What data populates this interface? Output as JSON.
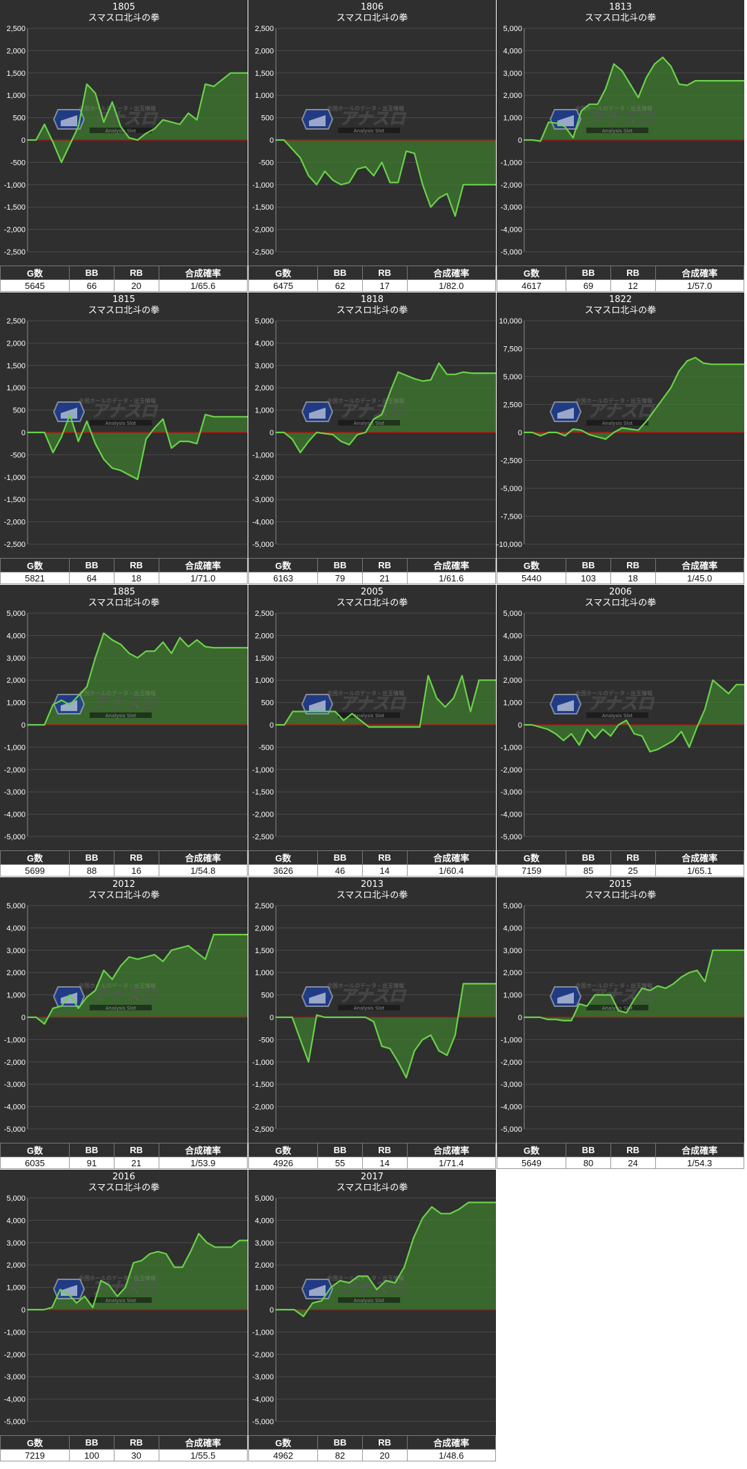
{
  "chart_data": [
    {
      "type": "area",
      "title": "1805",
      "subtitle": "スマスロ北斗の拳",
      "ylim": [
        -2500,
        2500
      ],
      "yticks": [
        "2,500",
        "2,000",
        "1,500",
        "1,000",
        "500",
        "0",
        "-500",
        "-1,000",
        "-1,500",
        "-2,000",
        "-2,500"
      ],
      "values": [
        0,
        0,
        350,
        -50,
        -500,
        -100,
        300,
        1250,
        1050,
        400,
        850,
        300,
        50,
        0,
        150,
        250,
        450,
        400,
        350,
        600,
        450,
        1250,
        1200,
        1350,
        1500,
        1500,
        1500
      ],
      "stats": {
        "headers": [
          "G数",
          "BB",
          "RB",
          "合成確率"
        ],
        "values": [
          "5645",
          "66",
          "20",
          "1/65.6"
        ]
      }
    },
    {
      "type": "area",
      "title": "1806",
      "subtitle": "スマスロ北斗の拳",
      "ylim": [
        -2500,
        2500
      ],
      "yticks": [
        "2,500",
        "2,000",
        "1,500",
        "1,000",
        "500",
        "0",
        "-500",
        "-1,000",
        "-1,500",
        "-2,000",
        "-2,500"
      ],
      "values": [
        0,
        0,
        -200,
        -400,
        -800,
        -1000,
        -700,
        -900,
        -1000,
        -950,
        -650,
        -600,
        -800,
        -500,
        -950,
        -950,
        -250,
        -300,
        -1000,
        -1500,
        -1300,
        -1200,
        -1700,
        -1000,
        -1000,
        -1000,
        -1000,
        -1000
      ],
      "stats": {
        "headers": [
          "G数",
          "BB",
          "RB",
          "合成確率"
        ],
        "values": [
          "6475",
          "62",
          "17",
          "1/82.0"
        ]
      }
    },
    {
      "type": "area",
      "title": "1813",
      "subtitle": "スマスロ北斗の拳",
      "ylim": [
        -5000,
        5000
      ],
      "yticks": [
        "5,000",
        "4,000",
        "3,000",
        "2,000",
        "1,000",
        "0",
        "-1,000",
        "-2,000",
        "-3,000",
        "-4,000",
        "-5,000"
      ],
      "values": [
        0,
        0,
        -50,
        800,
        750,
        600,
        100,
        1300,
        1600,
        1600,
        2300,
        3400,
        3100,
        2500,
        1900,
        2800,
        3400,
        3700,
        3300,
        2500,
        2450,
        2650,
        2650,
        2650,
        2650,
        2650,
        2650,
        2650
      ],
      "stats": {
        "headers": [
          "G数",
          "BB",
          "RB",
          "合成確率"
        ],
        "values": [
          "4617",
          "69",
          "12",
          "1/57.0"
        ]
      }
    },
    {
      "type": "area",
      "title": "1815",
      "subtitle": "スマスロ北斗の拳",
      "ylim": [
        -2500,
        2500
      ],
      "yticks": [
        "2,500",
        "2,000",
        "1,500",
        "1,000",
        "500",
        "0",
        "-500",
        "-1,000",
        "-1,500",
        "-2,000",
        "-2,500"
      ],
      "values": [
        0,
        0,
        0,
        -450,
        -100,
        400,
        -200,
        250,
        -250,
        -600,
        -800,
        -850,
        -950,
        -1050,
        -150,
        100,
        300,
        -350,
        -200,
        -200,
        -250,
        400,
        350,
        350,
        350,
        350,
        350
      ],
      "stats": {
        "headers": [
          "G数",
          "BB",
          "RB",
          "合成確率"
        ],
        "values": [
          "5821",
          "64",
          "18",
          "1/71.0"
        ]
      }
    },
    {
      "type": "area",
      "title": "1818",
      "subtitle": "スマスロ北斗の拳",
      "ylim": [
        -5000,
        5000
      ],
      "yticks": [
        "5,000",
        "4,000",
        "3,000",
        "2,000",
        "1,000",
        "0",
        "-1,000",
        "-2,000",
        "-3,000",
        "-4,000",
        "-5,000"
      ],
      "values": [
        0,
        0,
        -300,
        -900,
        -400,
        0,
        -50,
        -100,
        -400,
        -550,
        -100,
        0,
        600,
        800,
        1800,
        2700,
        2550,
        2400,
        2300,
        2350,
        3100,
        2600,
        2600,
        2700,
        2650,
        2650,
        2650,
        2650
      ],
      "stats": {
        "headers": [
          "G数",
          "BB",
          "RB",
          "合成確率"
        ],
        "values": [
          "6163",
          "79",
          "21",
          "1/61.6"
        ]
      }
    },
    {
      "type": "area",
      "title": "1822",
      "subtitle": "スマスロ北斗の拳",
      "ylim": [
        -10000,
        10000
      ],
      "yticks": [
        "10,000",
        "7,500",
        "5,000",
        "2,500",
        "0",
        "-2,500",
        "-5,000",
        "-7,500",
        "-10,000"
      ],
      "values": [
        0,
        0,
        -300,
        0,
        0,
        -300,
        300,
        200,
        -200,
        -400,
        -600,
        0,
        400,
        300,
        200,
        1000,
        2000,
        3000,
        4000,
        5500,
        6400,
        6700,
        6200,
        6100,
        6100,
        6100,
        6100,
        6100
      ],
      "stats": {
        "headers": [
          "G数",
          "BB",
          "RB",
          "合成確率"
        ],
        "values": [
          "5440",
          "103",
          "18",
          "1/45.0"
        ]
      }
    },
    {
      "type": "area",
      "title": "1885",
      "subtitle": "スマスロ北斗の拳",
      "ylim": [
        -5000,
        5000
      ],
      "yticks": [
        "5,000",
        "4,000",
        "3,000",
        "2,000",
        "1,000",
        "0",
        "-1,000",
        "-2,000",
        "-3,000",
        "-4,000",
        "-5,000"
      ],
      "values": [
        0,
        0,
        0,
        900,
        1100,
        900,
        1300,
        1700,
        3000,
        4100,
        3800,
        3600,
        3200,
        3000,
        3300,
        3300,
        3700,
        3200,
        3900,
        3500,
        3800,
        3500,
        3450,
        3450,
        3450,
        3450,
        3450
      ],
      "stats": {
        "headers": [
          "G数",
          "BB",
          "RB",
          "合成確率"
        ],
        "values": [
          "5699",
          "88",
          "16",
          "1/54.8"
        ]
      }
    },
    {
      "type": "area",
      "title": "2005",
      "subtitle": "スマスロ北斗の拳",
      "ylim": [
        -2500,
        2500
      ],
      "yticks": [
        "2,500",
        "2,000",
        "1,500",
        "1,000",
        "500",
        "0",
        "-500",
        "-1,000",
        "-1,500",
        "-2,000",
        "-2,500"
      ],
      "values": [
        0,
        0,
        300,
        300,
        300,
        300,
        300,
        300,
        100,
        250,
        100,
        -50,
        -50,
        -50,
        -50,
        -50,
        -50,
        -50,
        1100,
        600,
        400,
        600,
        1100,
        300,
        1000,
        1000,
        1000
      ],
      "stats": {
        "headers": [
          "G数",
          "BB",
          "RB",
          "合成確率"
        ],
        "values": [
          "3626",
          "46",
          "14",
          "1/60.4"
        ]
      }
    },
    {
      "type": "area",
      "title": "2006",
      "subtitle": "スマスロ北斗の拳",
      "ylim": [
        -5000,
        5000
      ],
      "yticks": [
        "5,000",
        "4,000",
        "3,000",
        "2,000",
        "1,000",
        "0",
        "-1,000",
        "-2,000",
        "-3,000",
        "-4,000",
        "-5,000"
      ],
      "values": [
        0,
        0,
        -100,
        -200,
        -400,
        -700,
        -400,
        -900,
        -200,
        -600,
        -200,
        -500,
        0,
        200,
        -400,
        -500,
        -1200,
        -1100,
        -900,
        -700,
        -300,
        -1000,
        -100,
        700,
        2000,
        1700,
        1400,
        1800,
        1800
      ],
      "stats": {
        "headers": [
          "G数",
          "BB",
          "RB",
          "合成確率"
        ],
        "values": [
          "7159",
          "85",
          "25",
          "1/65.1"
        ]
      }
    },
    {
      "type": "area",
      "title": "2012",
      "subtitle": "スマスロ北斗の拳",
      "ylim": [
        -5000,
        5000
      ],
      "yticks": [
        "5,000",
        "4,000",
        "3,000",
        "2,000",
        "1,000",
        "0",
        "-1,000",
        "-2,000",
        "-3,000",
        "-4,000",
        "-5,000"
      ],
      "values": [
        0,
        0,
        -300,
        400,
        500,
        1000,
        400,
        900,
        1200,
        2100,
        1700,
        2300,
        2700,
        2600,
        2700,
        2800,
        2500,
        3000,
        3100,
        3200,
        2900,
        2600,
        3700,
        3700,
        3700,
        3700,
        3700
      ],
      "stats": {
        "headers": [
          "G数",
          "BB",
          "RB",
          "合成確率"
        ],
        "values": [
          "6035",
          "91",
          "21",
          "1/53.9"
        ]
      }
    },
    {
      "type": "area",
      "title": "2013",
      "subtitle": "スマスロ北斗の拳",
      "ylim": [
        -2500,
        2500
      ],
      "yticks": [
        "2,500",
        "2,000",
        "1,500",
        "1,000",
        "500",
        "0",
        "-500",
        "-1,000",
        "-1,500",
        "-2,000",
        "-2,500"
      ],
      "values": [
        0,
        0,
        0,
        -500,
        -1000,
        50,
        0,
        0,
        0,
        0,
        0,
        0,
        -100,
        -650,
        -700,
        -1000,
        -1350,
        -750,
        -500,
        -400,
        -750,
        -850,
        -400,
        750,
        750,
        750,
        750,
        750
      ],
      "stats": {
        "headers": [
          "G数",
          "BB",
          "RB",
          "合成確率"
        ],
        "values": [
          "4926",
          "55",
          "14",
          "1/71.4"
        ]
      }
    },
    {
      "type": "area",
      "title": "2015",
      "subtitle": "スマスロ北斗の拳",
      "ylim": [
        -5000,
        5000
      ],
      "yticks": [
        "5,000",
        "4,000",
        "3,000",
        "2,000",
        "1,000",
        "0",
        "-1,000",
        "-2,000",
        "-3,000",
        "-4,000",
        "-5,000"
      ],
      "values": [
        0,
        0,
        0,
        -100,
        -100,
        -150,
        -150,
        600,
        500,
        1000,
        1000,
        1000,
        300,
        200,
        800,
        1300,
        1200,
        1400,
        1300,
        1500,
        1800,
        2000,
        2100,
        1600,
        3000,
        3000,
        3000,
        3000,
        3000
      ],
      "stats": {
        "headers": [
          "G数",
          "BB",
          "RB",
          "合成確率"
        ],
        "values": [
          "5649",
          "80",
          "24",
          "1/54.3"
        ]
      }
    },
    {
      "type": "area",
      "title": "2016",
      "subtitle": "スマスロ北斗の拳",
      "ylim": [
        -5000,
        5000
      ],
      "yticks": [
        "5,000",
        "4,000",
        "3,000",
        "2,000",
        "1,000",
        "0",
        "-1,000",
        "-2,000",
        "-3,000",
        "-4,000",
        "-5,000"
      ],
      "values": [
        0,
        0,
        0,
        100,
        900,
        700,
        300,
        600,
        100,
        1300,
        1100,
        600,
        1000,
        2100,
        2200,
        2500,
        2600,
        2500,
        1900,
        1900,
        2600,
        3400,
        3000,
        2800,
        2800,
        2800,
        3100,
        3100
      ],
      "stats": {
        "headers": [
          "G数",
          "BB",
          "RB",
          "合成確率"
        ],
        "values": [
          "7219",
          "100",
          "30",
          "1/55.5"
        ]
      }
    },
    {
      "type": "area",
      "title": "2017",
      "subtitle": "スマスロ北斗の拳",
      "ylim": [
        -5000,
        5000
      ],
      "yticks": [
        "5,000",
        "4,000",
        "3,000",
        "2,000",
        "1,000",
        "0",
        "-1,000",
        "-2,000",
        "-3,000",
        "-4,000",
        "-5,000"
      ],
      "values": [
        0,
        0,
        0,
        -300,
        300,
        400,
        1000,
        1300,
        1200,
        1500,
        1500,
        900,
        1300,
        1200,
        1900,
        3200,
        4100,
        4600,
        4300,
        4300,
        4500,
        4800,
        4800,
        4800,
        4800
      ],
      "stats": {
        "headers": [
          "G数",
          "BB",
          "RB",
          "合成確率"
        ],
        "values": [
          "4962",
          "82",
          "20",
          "1/48.6"
        ]
      }
    }
  ],
  "watermark": {
    "main": "アナスロ",
    "sub": "Analysis Slot",
    "top": "全国ホールのデータ・出玉情報"
  },
  "colors": {
    "panel_bg": "#2f2f2f",
    "line": "#6ad24a",
    "fill": "#3e7b2e",
    "zero_line": "#c01010",
    "grid": "#4a4a4a",
    "axis_text": "#ffffff"
  }
}
